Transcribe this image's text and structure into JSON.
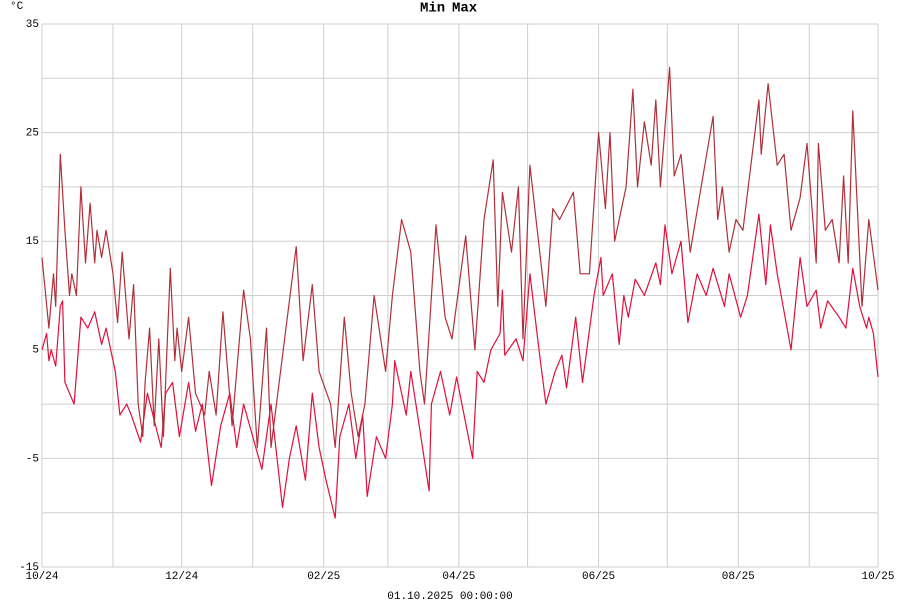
{
  "chart_data": {
    "type": "line",
    "y_label": "°C",
    "x_label": "01.10.2025 00:00:00",
    "xlim": [
      0,
      365
    ],
    "xticks": [
      {
        "value": 0,
        "label": "10/24"
      },
      {
        "value": 61,
        "label": "12/24"
      },
      {
        "value": 123,
        "label": "02/25"
      },
      {
        "value": 182,
        "label": "04/25"
      },
      {
        "value": 243,
        "label": "06/25"
      },
      {
        "value": 304,
        "label": "08/25"
      },
      {
        "value": 365,
        "label": "10/25"
      }
    ],
    "xgrid": [
      31,
      92,
      151,
      212,
      273,
      335
    ],
    "ylim": [
      -15,
      35
    ],
    "yticks": [
      35,
      25,
      15,
      5,
      -5,
      -15
    ],
    "ygrid": [
      30,
      20,
      10,
      0,
      -10
    ],
    "grid": true,
    "series": [
      {
        "name": "Min",
        "color": "#e0103c",
        "x": [
          0,
          2,
          3,
          4,
          6,
          8,
          9,
          10,
          12,
          14,
          17,
          20,
          23,
          26,
          28,
          32,
          34,
          37,
          39,
          43,
          46,
          52,
          54,
          57,
          60,
          64,
          67,
          70,
          74,
          78,
          82,
          85,
          88,
          96,
          100,
          105,
          108,
          111,
          115,
          118,
          121,
          124,
          128,
          130,
          134,
          137,
          140,
          142,
          146,
          150,
          153,
          154,
          159,
          161,
          164,
          169,
          170,
          174,
          178,
          181,
          188,
          190,
          193,
          196,
          200,
          201,
          202,
          207,
          210,
          213,
          217,
          220,
          224,
          227,
          229,
          233,
          236,
          241,
          244,
          245,
          249,
          252,
          254,
          256,
          259,
          263,
          268,
          270,
          272,
          275,
          279,
          282,
          286,
          290,
          293,
          298,
          300,
          305,
          308,
          313,
          316,
          318,
          321,
          327,
          331,
          334,
          338,
          340,
          343,
          348,
          351,
          354,
          357,
          360,
          361,
          363,
          365
        ],
        "values": [
          5,
          6.5,
          4,
          5,
          3.5,
          9,
          9.5,
          2,
          1,
          0,
          8,
          7,
          8.5,
          5.5,
          7,
          3,
          -1,
          0,
          -1,
          -3.5,
          1,
          -4,
          1,
          2,
          -3,
          2,
          -2.5,
          0,
          -7.5,
          -2,
          1,
          -4,
          0,
          -6,
          0,
          -9.5,
          -5,
          -2,
          -7,
          1,
          -4,
          -7,
          -10.5,
          -3,
          0,
          -5,
          -1,
          -8.5,
          -3,
          -5,
          0,
          4,
          -1,
          3,
          -1,
          -8,
          0,
          3,
          -1,
          2.5,
          -5,
          3,
          2,
          5,
          6.5,
          10.5,
          4.5,
          6,
          4,
          12,
          5,
          0,
          3,
          4.5,
          1.5,
          8,
          2,
          10,
          13.5,
          10,
          12,
          5.5,
          10,
          8,
          11.5,
          10,
          13,
          11,
          16.5,
          12,
          15,
          7.5,
          12,
          10,
          12.5,
          9,
          12,
          8,
          10,
          17.5,
          11,
          16.5,
          12,
          5,
          13.5,
          9,
          10.5,
          7,
          9.5,
          8,
          7,
          12.5,
          9,
          7,
          8,
          6.5,
          2.5
        ]
      },
      {
        "name": "Max",
        "color": "#b0303a",
        "x": [
          0,
          3,
          5,
          6,
          8,
          10,
          12,
          13,
          15,
          17,
          19,
          21,
          23,
          24,
          26,
          28,
          31,
          33,
          35,
          38,
          40,
          42,
          44,
          45,
          47,
          49,
          51,
          53,
          56,
          58,
          59,
          61,
          64,
          67,
          71,
          73,
          76,
          79,
          83,
          88,
          91,
          94,
          98,
          100,
          111,
          114,
          118,
          121,
          126,
          128,
          132,
          135,
          138,
          141,
          145,
          150,
          153,
          157,
          161,
          165,
          167,
          172,
          176,
          179,
          185,
          189,
          193,
          197,
          199,
          201,
          205,
          208,
          210,
          213,
          220,
          223,
          226,
          232,
          235,
          239,
          243,
          246,
          248,
          250,
          255,
          258,
          260,
          263,
          266,
          268,
          270,
          274,
          276,
          279,
          283,
          287,
          293,
          295,
          297,
          300,
          303,
          306,
          313,
          314,
          317,
          321,
          324,
          327,
          331,
          334,
          338,
          339,
          342,
          345,
          348,
          350,
          352,
          354,
          358,
          361,
          365
        ],
        "values": [
          13.5,
          7,
          12,
          9,
          23,
          16,
          10,
          12,
          10,
          20,
          13,
          18.5,
          13,
          16,
          13.5,
          16,
          12,
          7.5,
          14,
          6,
          11,
          0,
          -3,
          2,
          7,
          -2,
          6,
          -3,
          12.5,
          4,
          7,
          3,
          8,
          1,
          -1,
          3,
          -1,
          8.5,
          -2,
          10.5,
          6,
          -4,
          7,
          -4,
          14.5,
          4,
          11,
          3,
          0,
          -4,
          8,
          1,
          -3,
          0,
          10,
          3,
          10,
          17,
          14,
          3,
          0,
          16.5,
          8,
          6,
          15.5,
          5,
          17,
          22.5,
          9,
          19.5,
          14,
          20,
          6,
          22,
          9,
          18,
          17,
          19.5,
          12,
          12,
          25,
          18,
          25,
          15,
          20,
          29,
          20,
          26,
          22,
          28,
          20,
          31,
          21,
          23,
          14,
          19,
          26.5,
          17,
          20,
          14,
          17,
          16,
          28,
          23,
          29.5,
          22,
          23,
          16,
          19,
          24,
          13,
          24,
          16,
          17,
          13,
          21,
          13,
          27,
          9,
          17,
          10.5
        ]
      }
    ]
  }
}
